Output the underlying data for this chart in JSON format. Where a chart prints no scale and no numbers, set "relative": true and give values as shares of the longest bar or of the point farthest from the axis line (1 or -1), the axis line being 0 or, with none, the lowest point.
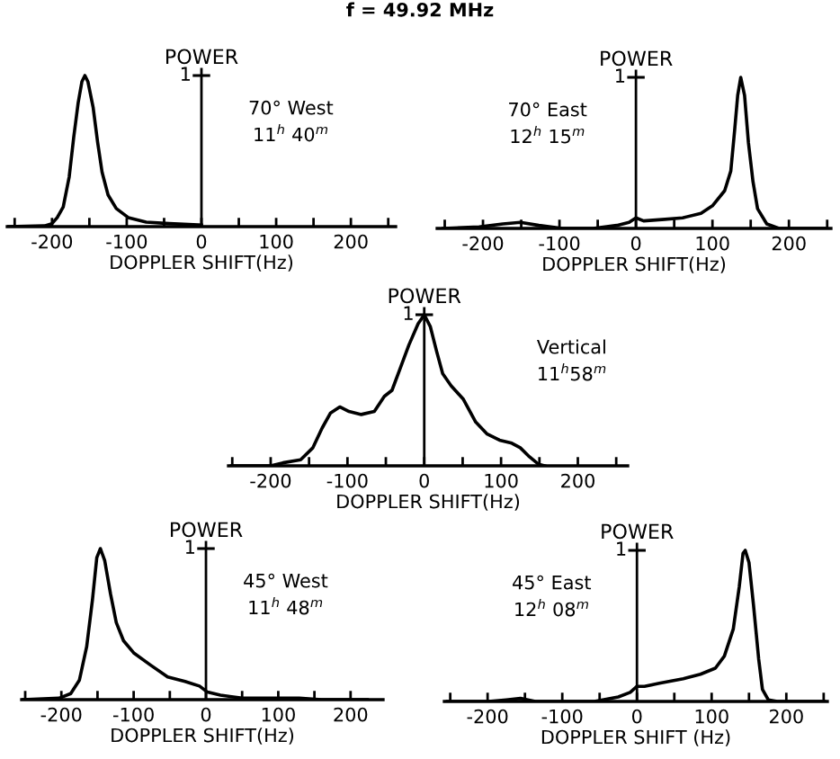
{
  "chart_data": [
    {
      "type": "line",
      "title": "f = 49.92 MHz",
      "xlabel": "DOPPLER SHIFT(Hz)",
      "ylabel": "POWER",
      "relative": true,
      "xlim": [
        -260,
        260
      ],
      "xticks": [
        {
          "value": -250,
          "label": null
        },
        -200,
        {
          "value": -150,
          "label": null
        },
        -100,
        {
          "value": -50,
          "label": null
        },
        0,
        {
          "value": 50,
          "label": null
        },
        100,
        {
          "value": 150,
          "label": null
        },
        200,
        {
          "value": 250,
          "label": null
        }
      ],
      "ref_lines": [
        {
          "axis": "x",
          "value": 0
        }
      ],
      "annotations": [
        "1",
        "70° West",
        "11$^{h}$ 40$^{m}$"
      ],
      "x": [
        -260,
        -210,
        -200,
        -193,
        -185,
        -177,
        -171,
        -165,
        -160,
        -156,
        -152,
        -145,
        -139,
        -133,
        -125,
        -114,
        -98,
        -74,
        -43,
        0
      ],
      "series": [
        {
          "color": "#000000",
          "values": [
            0,
            0.005,
            0.02,
            0.06,
            0.13,
            0.33,
            0.59,
            0.82,
            0.96,
            1,
            0.96,
            0.79,
            0.56,
            0.36,
            0.21,
            0.12,
            0.06,
            0.03,
            0.02,
            0.01
          ]
        }
      ]
    },
    {
      "type": "line",
      "xlabel": "DOPPLER SHIFT(Hz)",
      "ylabel": "POWER",
      "relative": true,
      "xlim": [
        -260,
        255
      ],
      "xticks": [
        {
          "value": -250,
          "label": null
        },
        -200,
        {
          "value": -150,
          "label": null
        },
        -100,
        {
          "value": -50,
          "label": null
        },
        0,
        {
          "value": 50,
          "label": null
        },
        100,
        {
          "value": 150,
          "label": null
        },
        200,
        {
          "value": 250,
          "label": null
        }
      ],
      "ref_lines": [
        {
          "axis": "x",
          "value": 0
        }
      ],
      "annotations": [
        "1",
        "70° East",
        "12$^{h}$ 15$^{m}$"
      ],
      "x": [
        -252,
        -205,
        -174,
        -151,
        -127,
        -96,
        -56,
        -25,
        -9,
        0,
        10,
        38,
        61,
        85,
        100,
        116,
        124,
        129,
        133,
        137,
        142,
        147,
        153,
        159,
        171,
        187,
        249
      ],
      "series": [
        {
          "color": "#000000",
          "values": [
            0,
            0.01,
            0.03,
            0.04,
            0.02,
            0,
            0,
            0.02,
            0.04,
            0.07,
            0.05,
            0.06,
            0.07,
            0.1,
            0.15,
            0.25,
            0.38,
            0.65,
            0.88,
            1,
            0.88,
            0.57,
            0.31,
            0.13,
            0.03,
            0,
            0
          ]
        }
      ]
    },
    {
      "type": "line",
      "xlabel": "DOPPLER SHIFT(Hz)",
      "ylabel": "POWER",
      "relative": true,
      "xlim": [
        -255,
        265
      ],
      "xticks": [
        {
          "value": -250,
          "label": null
        },
        -200,
        {
          "value": -150,
          "label": null
        },
        -100,
        {
          "value": -50,
          "label": null
        },
        0,
        {
          "value": 50,
          "label": null
        },
        100,
        {
          "value": 150,
          "label": null
        },
        200,
        {
          "value": 250,
          "label": null
        }
      ],
      "ref_lines": [
        {
          "axis": "x",
          "value": 0
        }
      ],
      "annotations": [
        "1",
        "Vertical",
        "11$^{h}$58$^{m}$"
      ],
      "x": [
        -251,
        -200,
        -184,
        -161,
        -145,
        -133,
        -122,
        -110,
        -98,
        -82,
        -65,
        -52,
        -42,
        -31,
        -20,
        -8,
        0,
        8,
        16,
        24,
        35,
        51,
        67,
        82,
        98,
        114,
        125,
        137,
        149,
        157
      ],
      "series": [
        {
          "color": "#000000",
          "values": [
            0,
            0,
            0.02,
            0.04,
            0.12,
            0.25,
            0.35,
            0.39,
            0.36,
            0.34,
            0.36,
            0.46,
            0.5,
            0.65,
            0.8,
            0.94,
            1,
            0.92,
            0.76,
            0.61,
            0.53,
            0.44,
            0.29,
            0.21,
            0.17,
            0.15,
            0.12,
            0.06,
            0.01,
            0
          ]
        }
      ]
    },
    {
      "type": "line",
      "xlabel": "DOPPLER SHIFT(Hz)",
      "ylabel": "POWER",
      "relative": true,
      "xlim": [
        -255,
        245
      ],
      "xticks": [
        {
          "value": -250,
          "label": null
        },
        -200,
        {
          "value": -150,
          "label": null
        },
        -100,
        {
          "value": -50,
          "label": null
        },
        0,
        {
          "value": 50,
          "label": null
        },
        100,
        {
          "value": 150,
          "label": null
        },
        200
      ],
      "ref_lines": [
        {
          "axis": "x",
          "value": 0
        }
      ],
      "annotations": [
        "1",
        "45° West",
        "11$^{h}$ 48$^{m}$"
      ],
      "x": [
        -254,
        -203,
        -187,
        -175,
        -165,
        -157,
        -151,
        -146,
        -140,
        -132,
        -124,
        -114,
        -100,
        -77,
        -53,
        -29,
        -9,
        2,
        20,
        50,
        97,
        129,
        160,
        223
      ],
      "series": [
        {
          "color": "#000000",
          "values": [
            0,
            0.01,
            0.04,
            0.13,
            0.35,
            0.66,
            0.94,
            1,
            0.92,
            0.7,
            0.51,
            0.39,
            0.31,
            0.23,
            0.15,
            0.12,
            0.09,
            0.05,
            0.03,
            0.01,
            0.01,
            0.01,
            0,
            0
          ]
        }
      ]
    },
    {
      "type": "line",
      "xlabel": "DOPPLER SHIFT (Hz)",
      "ylabel": "POWER",
      "relative": true,
      "xlim": [
        -258,
        255
      ],
      "xticks": [
        {
          "value": -250,
          "label": null
        },
        -200,
        {
          "value": -150,
          "label": null
        },
        -100,
        {
          "value": -50,
          "label": null
        },
        0,
        {
          "value": 50,
          "label": null
        },
        100,
        {
          "value": 150,
          "label": null
        },
        200,
        {
          "value": 250,
          "label": null
        }
      ],
      "ref_lines": [
        {
          "axis": "x",
          "value": 0
        }
      ],
      "annotations": [
        "1",
        "45° East",
        "12$^{h}$ 08$^{m}$"
      ],
      "x": [
        -254,
        -199,
        -175,
        -156,
        -136,
        -57,
        -25,
        -9,
        0,
        10,
        30,
        62,
        85,
        105,
        117,
        129,
        137,
        142,
        145,
        150,
        156,
        163,
        168,
        176,
        188,
        251
      ],
      "series": [
        {
          "color": "#000000",
          "values": [
            0,
            0,
            0.01,
            0.02,
            0,
            0,
            0.03,
            0.06,
            0.1,
            0.1,
            0.12,
            0.15,
            0.18,
            0.22,
            0.3,
            0.48,
            0.76,
            0.98,
            1,
            0.92,
            0.64,
            0.28,
            0.08,
            0.01,
            0,
            0
          ]
        }
      ]
    }
  ]
}
